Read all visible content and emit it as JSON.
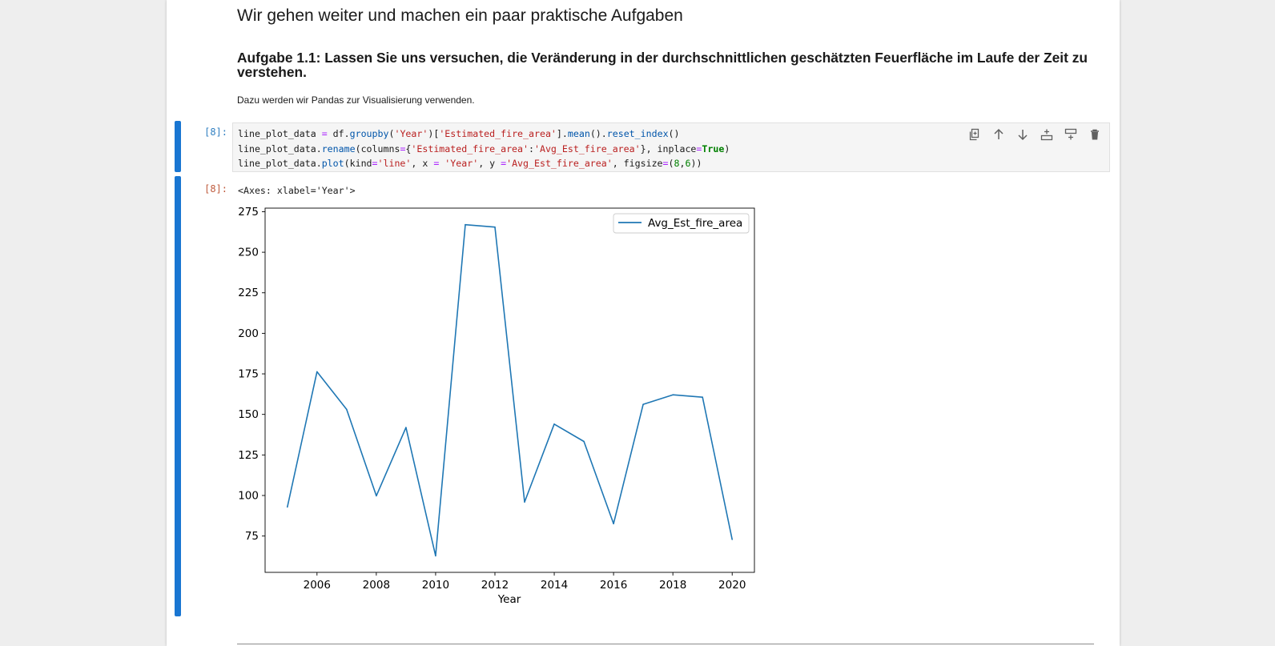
{
  "markdown": {
    "heading": "Wir gehen weiter und machen ein paar praktische Aufgaben",
    "task": "Aufgabe 1.1: Lassen Sie uns versuchen, die Veränderung in der durchschnittlichen geschätzten Feuerfläche im Laufe der Zeit zu verstehen.",
    "paragraph": "Dazu werden wir Pandas zur Visualisierung verwenden."
  },
  "code_cell": {
    "prompt": "[8]:",
    "line1": {
      "a": "line_plot_data ",
      "eq": "=",
      "b": " df.",
      "groupby": "groupby",
      "c": "(",
      "s1": "'Year'",
      "d": ")[",
      "s2": "'Estimated_fire_area'",
      "e": "].",
      "mean": "mean",
      "f": "().",
      "reset": "reset_index",
      "g": "()"
    },
    "line2": {
      "a": "line_plot_data.",
      "rename": "rename",
      "b": "(columns",
      "eq": "=",
      "c": "{",
      "s1": "'Estimated_fire_area'",
      "d": ":",
      "s2": "'Avg_Est_fire_area'",
      "e": "}, inplace",
      "eq2": "=",
      "true": "True",
      "f": ")"
    },
    "line3": {
      "a": "line_plot_data.",
      "plot": "plot",
      "b": "(kind",
      "eq": "=",
      "s1": "'line'",
      "c": ", x ",
      "eq2": "=",
      "d": " ",
      "s2": "'Year'",
      "e": ", y ",
      "eq3": "=",
      "s3": "'Avg_Est_fire_area'",
      "f": ", figsize",
      "eq4": "=",
      "g": "(",
      "n1": "8",
      "h": ",",
      "n2": "6",
      "i": "))"
    },
    "toolbar": [
      "duplicate-icon",
      "move-up-icon",
      "move-down-icon",
      "insert-above-icon",
      "insert-below-icon",
      "delete-icon"
    ]
  },
  "output": {
    "prompt": "[8]:",
    "text": "<Axes: xlabel='Year'>"
  },
  "colors": {
    "accent": "#1976d2",
    "line": "#1f77b4"
  },
  "chart_data": {
    "type": "line",
    "title": "",
    "xlabel": "Year",
    "ylabel": "",
    "x": [
      2005,
      2006,
      2007,
      2008,
      2009,
      2010,
      2011,
      2012,
      2013,
      2014,
      2015,
      2016,
      2017,
      2018,
      2019,
      2020
    ],
    "series": [
      {
        "name": "Avg_Est_fire_area",
        "values": [
          92.9,
          176.3,
          153.1,
          99.8,
          141.9,
          62.8,
          267.0,
          265.5,
          96.0,
          144.0,
          133.3,
          82.6,
          156.2,
          162.1,
          160.6,
          72.9
        ]
      }
    ],
    "xticks": [
      2006,
      2008,
      2010,
      2012,
      2014,
      2016,
      2018,
      2020
    ],
    "yticks": [
      75,
      100,
      125,
      150,
      175,
      200,
      225,
      250,
      275
    ],
    "xlim": [
      2004.25,
      2020.75
    ],
    "ylim": [
      52.6,
      277.2
    ],
    "grid": false,
    "legend": "top-right"
  }
}
